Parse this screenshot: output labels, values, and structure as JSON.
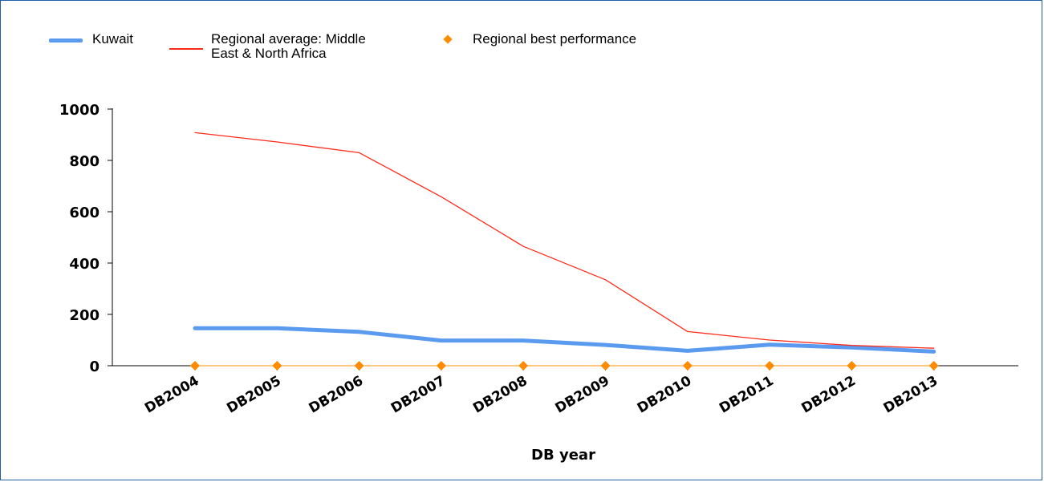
{
  "chart_data": {
    "type": "line",
    "xlabel": "DB year",
    "ylabel": "",
    "ylim": [
      0,
      1000
    ],
    "yticks": [
      "0",
      "200",
      "400",
      "600",
      "800",
      "1000"
    ],
    "categories": [
      "DB2004",
      "DB2005",
      "DB2006",
      "DB2007",
      "DB2008",
      "DB2009",
      "DB2010",
      "DB2011",
      "DB2012",
      "DB2013"
    ],
    "legend_position": "top-left",
    "grid": false,
    "series": [
      {
        "name": "Kuwait",
        "style": "line",
        "color": "#5b9bef",
        "values": [
          146,
          146,
          132,
          98,
          98,
          81,
          58,
          82,
          71,
          55
        ]
      },
      {
        "name": "Regional average: Middle East & North Africa",
        "name_lines": [
          "Regional average: Middle",
          "East & North Africa"
        ],
        "style": "line",
        "color": "#ff2a1a",
        "values": [
          908,
          872,
          830,
          658,
          465,
          335,
          133,
          100,
          79,
          68
        ]
      },
      {
        "name": "Regional best performance",
        "style": "marker",
        "color": "#ff8c00",
        "values": [
          0,
          0,
          0,
          0,
          0,
          0,
          0,
          0,
          0,
          0
        ]
      }
    ]
  }
}
